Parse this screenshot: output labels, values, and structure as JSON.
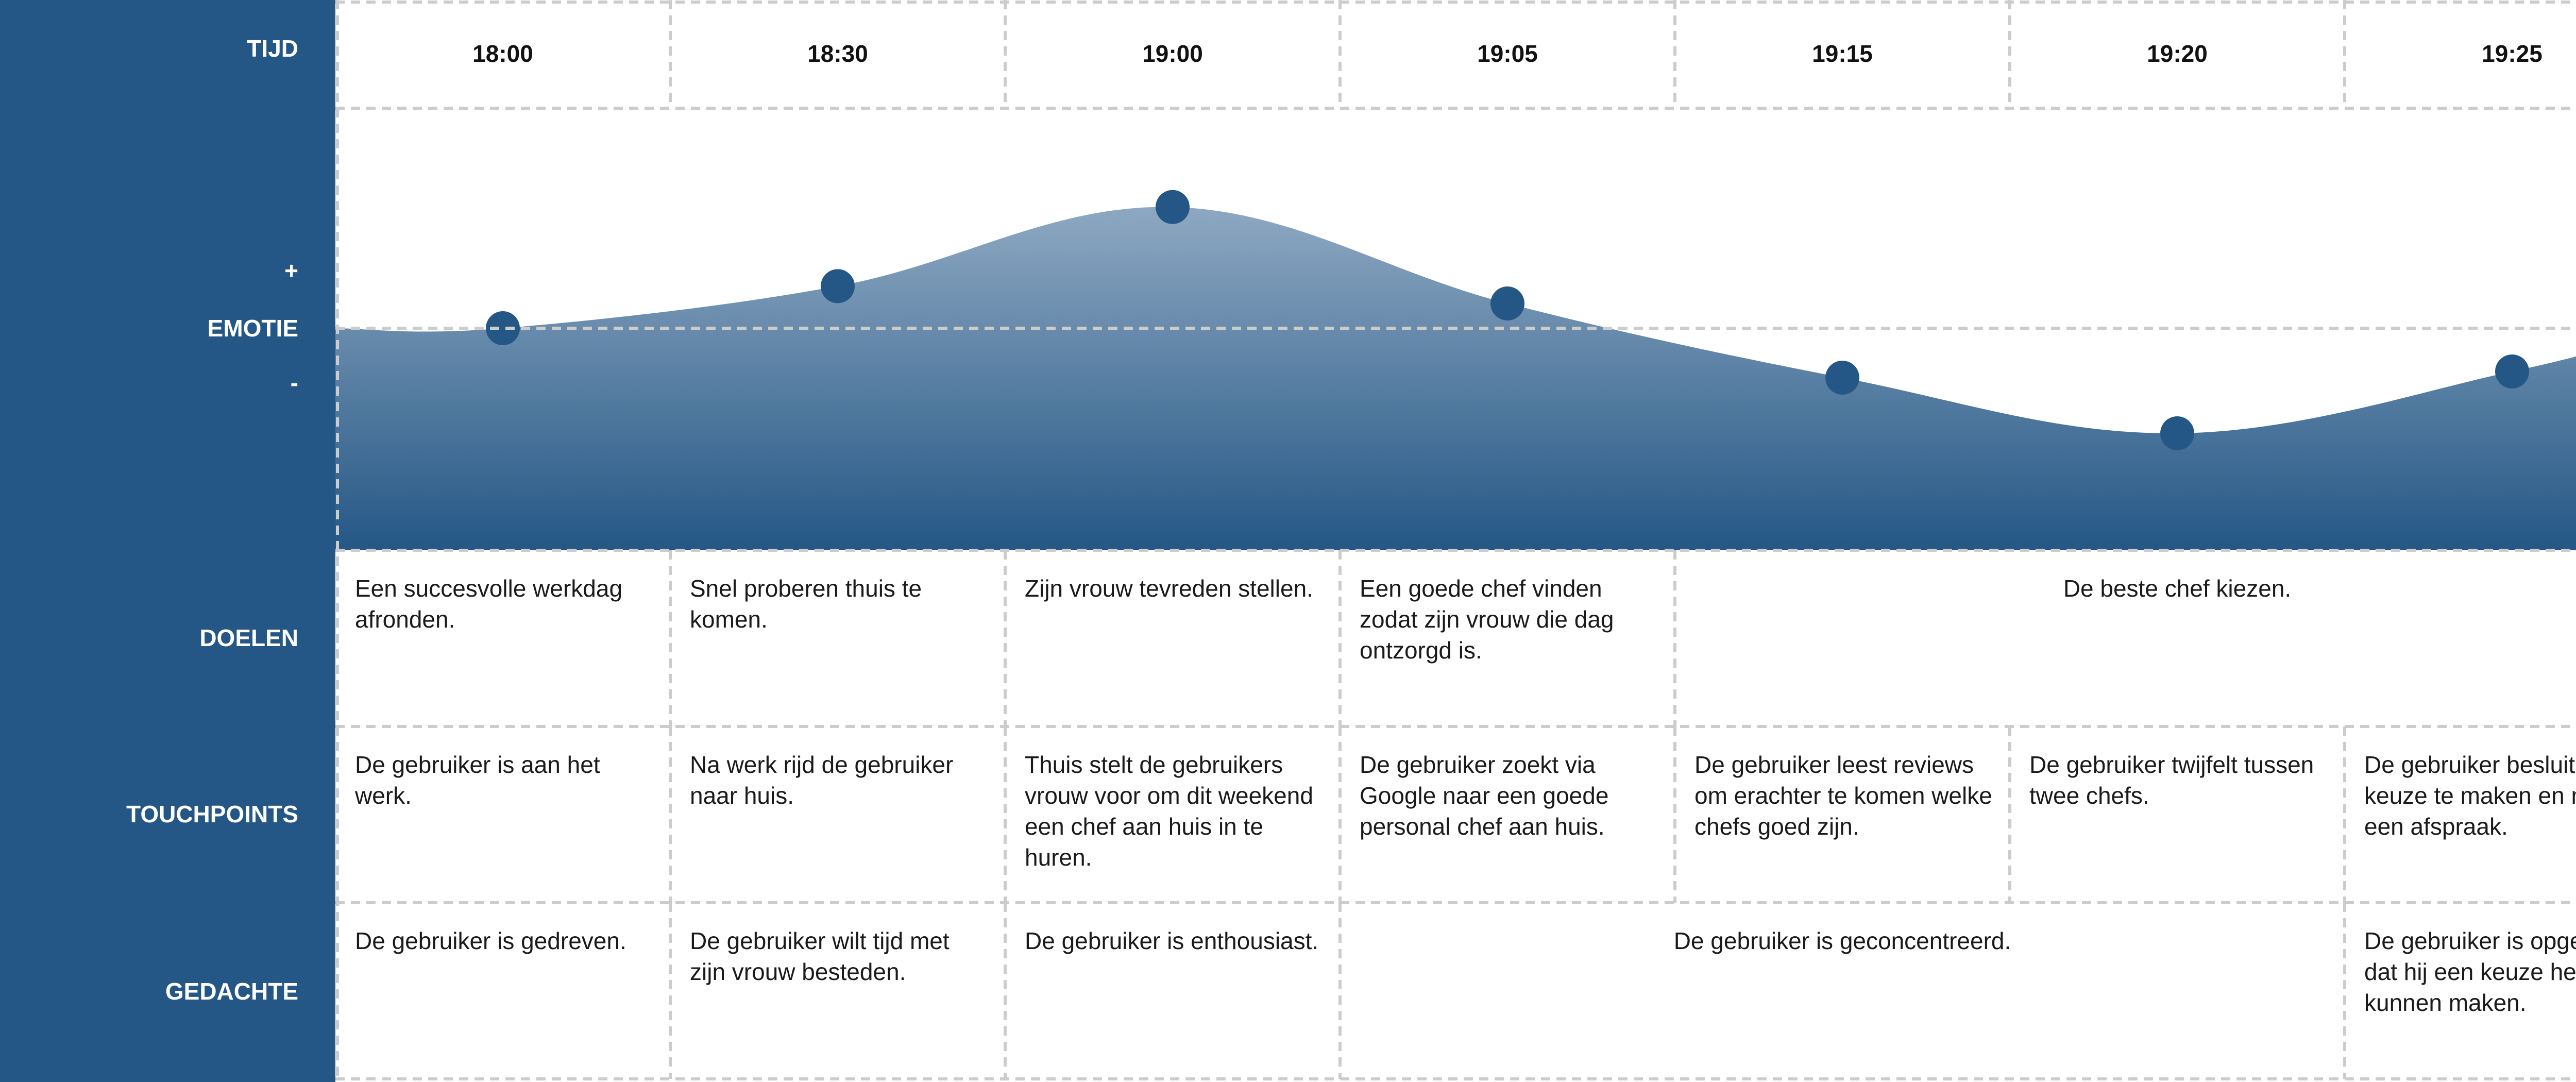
{
  "colors": {
    "sidebar": "#245785",
    "marker": "#245785",
    "area_top": "#8ea8c2",
    "area_bottom": "#245785",
    "grid_line": "#cccccc"
  },
  "row_labels": {
    "tijd": "TIJD",
    "plus": "+",
    "emotie": "EMOTIE",
    "minus": "-",
    "doelen": "DOELEN",
    "touchpoints": "TOUCHPOINTS",
    "gedachte": "GEDACHTE"
  },
  "times": [
    "18:00",
    "18:30",
    "19:00",
    "19:05",
    "19:15",
    "19:20",
    "19:25"
  ],
  "chart_data": {
    "type": "area",
    "x": [
      "18:00",
      "18:30",
      "19:00",
      "19:05",
      "19:15",
      "19:20",
      "19:25"
    ],
    "values": [
      0,
      0.34,
      0.98,
      0.2,
      -0.4,
      -0.85,
      -0.35
    ],
    "ylim": [
      -1.8,
      1.8
    ],
    "grid": false,
    "legend": "none"
  },
  "doelen": [
    {
      "span": [
        0,
        0
      ],
      "text": "Een succesvolle werkdag afronden.",
      "align": "left"
    },
    {
      "span": [
        1,
        1
      ],
      "text": "Snel proberen thuis te komen.",
      "align": "left"
    },
    {
      "span": [
        2,
        2
      ],
      "text": "Zijn vrouw tevreden stellen.",
      "align": "left"
    },
    {
      "span": [
        3,
        3
      ],
      "text": "Een goede chef vinden zodat zijn vrouw die dag ontzorgd is.",
      "align": "left"
    },
    {
      "span": [
        4,
        6
      ],
      "text": "De beste chef kiezen.",
      "align": "center"
    }
  ],
  "touchpoints": [
    {
      "span": [
        0,
        0
      ],
      "text": "De gebruiker is aan het werk.",
      "align": "left"
    },
    {
      "span": [
        1,
        1
      ],
      "text": "Na werk rijd de gebruiker naar huis.",
      "align": "left"
    },
    {
      "span": [
        2,
        2
      ],
      "text": "Thuis stelt de gebruikers vrouw voor om dit weekend een chef aan huis in te huren.",
      "align": "left"
    },
    {
      "span": [
        3,
        3
      ],
      "text": "De gebruiker zoekt via Google naar een goede personal chef aan huis.",
      "align": "left"
    },
    {
      "span": [
        4,
        4
      ],
      "text": "De gebruiker leest reviews om erachter te komen welke chefs goed zijn.",
      "align": "left"
    },
    {
      "span": [
        5,
        5
      ],
      "text": "De gebruiker twijfelt tussen twee chefs.",
      "align": "left"
    },
    {
      "span": [
        6,
        6
      ],
      "text": "De gebruiker besluit een keuze te maken en maakt een afspraak.",
      "align": "left"
    }
  ],
  "gedachte": [
    {
      "span": [
        0,
        0
      ],
      "text": "De gebruiker is gedreven.",
      "align": "left"
    },
    {
      "span": [
        1,
        1
      ],
      "text": "De gebruiker wilt tijd met zijn vrouw besteden.",
      "align": "left"
    },
    {
      "span": [
        2,
        2
      ],
      "text": "De gebruiker is enthousiast.",
      "align": "left"
    },
    {
      "span": [
        3,
        5
      ],
      "text": "De gebruiker is geconcentreerd.",
      "align": "center"
    },
    {
      "span": [
        6,
        6
      ],
      "text": "De gebruiker is opgelucht dat hij een keuze heeft kunnen maken.",
      "align": "left"
    }
  ]
}
